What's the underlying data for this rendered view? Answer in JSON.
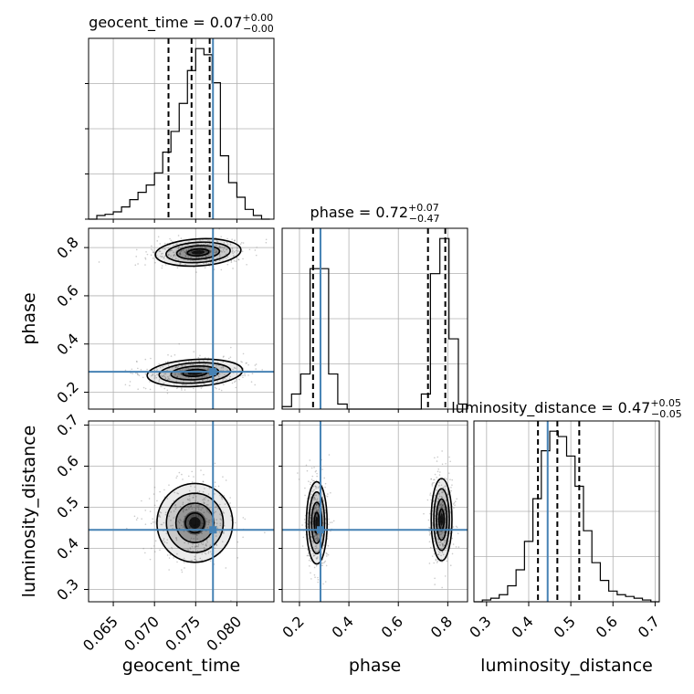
{
  "chart_data": {
    "type": "corner",
    "parameters": [
      {
        "name": "geocent_time",
        "label": "geocent_time",
        "title": "geocent_time = 0.07",
        "title_sup": "+0.00",
        "title_sub": "−0.00",
        "range": [
          0.062,
          0.0845
        ],
        "ticks": [
          0.065,
          0.07,
          0.075,
          0.08
        ],
        "tick_labels": [
          "0.065",
          "0.070",
          "0.075",
          "0.080"
        ],
        "quantiles": [
          0.0717,
          0.0745,
          0.0767
        ],
        "truth": 0.0771,
        "hist": {
          "edges": [
            0.062,
            0.063,
            0.064,
            0.065,
            0.066,
            0.067,
            0.068,
            0.069,
            0.07,
            0.071,
            0.072,
            0.073,
            0.074,
            0.075,
            0.076,
            0.077,
            0.078,
            0.079,
            0.08,
            0.081,
            0.082,
            0.083,
            0.084
          ],
          "counts": [
            0,
            3,
            4,
            6,
            10,
            16,
            22,
            28,
            38,
            55,
            72,
            95,
            122,
            140,
            135,
            112,
            52,
            30,
            18,
            8,
            3,
            0
          ]
        }
      },
      {
        "name": "phase",
        "label": "phase",
        "title": "phase = 0.72",
        "title_sup": "+0.07",
        "title_sub": "−0.47",
        "range": [
          0.13,
          0.88
        ],
        "ticks": [
          0.2,
          0.4,
          0.6,
          0.8
        ],
        "tick_labels": [
          "0.2",
          "0.4",
          "0.6",
          "0.8"
        ],
        "quantiles": [
          0.255,
          0.72,
          0.79
        ],
        "truth": 0.285,
        "hist": {
          "edges": [
            0.13,
            0.168,
            0.205,
            0.243,
            0.28,
            0.318,
            0.355,
            0.393,
            0.43,
            0.468,
            0.505,
            0.543,
            0.58,
            0.618,
            0.655,
            0.693,
            0.73,
            0.768,
            0.805,
            0.843,
            0.88
          ],
          "counts": [
            1,
            6,
            14,
            56,
            56,
            14,
            2,
            0,
            0,
            0,
            0,
            0,
            0,
            0,
            0,
            6,
            54,
            68,
            28,
            2
          ]
        }
      },
      {
        "name": "luminosity_distance",
        "label": "luminosity_distance",
        "title": "luminosity_distance = 0.47",
        "title_sup": "+0.05",
        "title_sub": "−0.05",
        "range": [
          0.27,
          0.71
        ],
        "ticks": [
          0.3,
          0.4,
          0.5,
          0.6,
          0.7
        ],
        "tick_labels": [
          "0.3",
          "0.4",
          "0.5",
          "0.6",
          "0.7"
        ],
        "quantiles": [
          0.422,
          0.468,
          0.52
        ],
        "truth": 0.445,
        "hist": {
          "edges": [
            0.27,
            0.29,
            0.31,
            0.33,
            0.35,
            0.37,
            0.39,
            0.41,
            0.43,
            0.45,
            0.47,
            0.49,
            0.51,
            0.53,
            0.55,
            0.57,
            0.59,
            0.61,
            0.63,
            0.65,
            0.67,
            0.69,
            0.71
          ],
          "counts": [
            0,
            1,
            2,
            4,
            9,
            18,
            34,
            58,
            85,
            96,
            93,
            82,
            65,
            40,
            22,
            12,
            6,
            4,
            3,
            2,
            1,
            0
          ]
        }
      }
    ],
    "pairs": [
      {
        "x": "geocent_time",
        "y": "phase",
        "modes": [
          {
            "center": [
              0.0753,
              0.78
            ],
            "spread": [
              0.0026,
              0.028
            ],
            "tilt": 0.55
          },
          {
            "center": [
              0.0749,
              0.28
            ],
            "spread": [
              0.0029,
              0.028
            ],
            "tilt": 0.6
          }
        ],
        "truth": [
          0.0771,
          0.285
        ]
      },
      {
        "x": "geocent_time",
        "y": "luminosity_distance",
        "modes": [
          {
            "center": [
              0.0749,
              0.462
            ],
            "spread": [
              0.0023,
              0.048
            ],
            "tilt": 0.0
          }
        ],
        "truth": [
          0.0771,
          0.445
        ]
      },
      {
        "x": "phase",
        "y": "luminosity_distance",
        "modes": [
          {
            "center": [
              0.27,
              0.462
            ],
            "spread": [
              0.021,
              0.05
            ],
            "tilt": 0.0
          },
          {
            "center": [
              0.775,
              0.47
            ],
            "spread": [
              0.021,
              0.05
            ],
            "tilt": 0.0
          }
        ],
        "truth": [
          0.285,
          0.445
        ]
      }
    ],
    "truth_color": "#4682b4",
    "grid": true
  }
}
